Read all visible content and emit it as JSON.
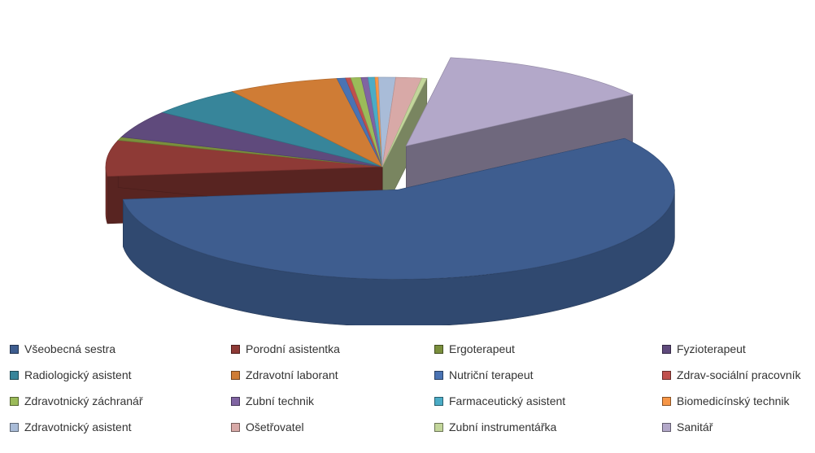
{
  "chart_data": {
    "type": "pie",
    "style": "3d-exploded",
    "legend_position": "bottom",
    "slices": [
      {
        "label": "Všeobecná sestra",
        "value": 58.0,
        "color": "#3e5d8f",
        "exploded": true
      },
      {
        "label": "Porodní asistentka",
        "value": 6.5,
        "color": "#8e3a36"
      },
      {
        "label": "Ergoterapeut",
        "value": 0.6,
        "color": "#7a8f3c"
      },
      {
        "label": "Fyzioterapeut",
        "value": 5.0,
        "color": "#5f4a7c"
      },
      {
        "label": "Radiologický asistent",
        "value": 5.5,
        "color": "#37859a"
      },
      {
        "label": "Zdravotní laborant",
        "value": 6.5,
        "color": "#cf7c35"
      },
      {
        "label": "Nutriční terapeut",
        "value": 0.5,
        "color": "#4a73b3"
      },
      {
        "label": "Zdrav-sociální pracovník",
        "value": 0.3,
        "color": "#c0504d"
      },
      {
        "label": "Zdravotnický záchranář",
        "value": 0.6,
        "color": "#9bbb59"
      },
      {
        "label": "Zubní technik",
        "value": 0.4,
        "color": "#8064a2"
      },
      {
        "label": "Farmaceutický asistent",
        "value": 0.4,
        "color": "#4bacc6"
      },
      {
        "label": "Biomedicínský technik",
        "value": 0.2,
        "color": "#f79646"
      },
      {
        "label": "Zdravotnický asistent",
        "value": 1.0,
        "color": "#a9bcd8"
      },
      {
        "label": "Ošetřovatel",
        "value": 1.5,
        "color": "#d8a9a7"
      },
      {
        "label": "Zubní instrumentářka",
        "value": 0.3,
        "color": "#c3d69b"
      },
      {
        "label": "Sanitář",
        "value": 12.7,
        "color": "#b3a8c9",
        "exploded": true
      }
    ]
  }
}
